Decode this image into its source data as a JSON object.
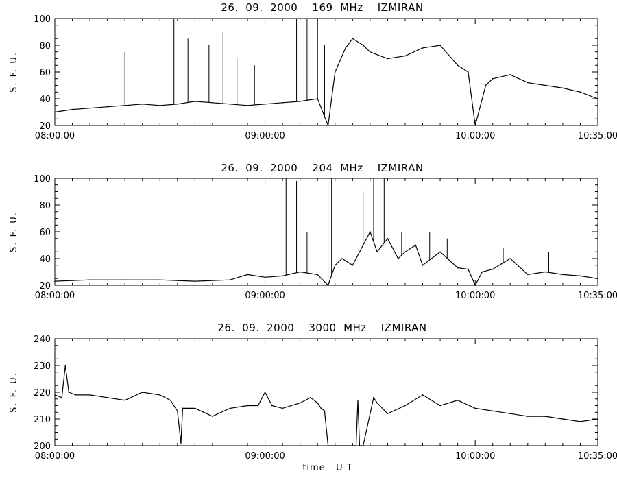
{
  "chart_data": [
    {
      "type": "line",
      "title": "26.  09.  2000    169  MHz    IZMIRAN",
      "ylabel": "S. F. U.",
      "xlabel": "",
      "x_range_minutes_from_0800": [
        0,
        155
      ],
      "x_ticks": [
        {
          "t": 0,
          "label": "08:00:00"
        },
        {
          "t": 60,
          "label": "09:00:00"
        },
        {
          "t": 120,
          "label": "10:00:00"
        },
        {
          "t": 155,
          "label": "10:35:00"
        }
      ],
      "ylim": [
        20,
        100
      ],
      "y_ticks": [
        20,
        40,
        60,
        80,
        100
      ],
      "series": [
        {
          "x": [
            0,
            5,
            10,
            15,
            20,
            25,
            30,
            35,
            40,
            45,
            50,
            55,
            60,
            65,
            70,
            75,
            78,
            80,
            83,
            85,
            88,
            90,
            95,
            100,
            105,
            110,
            115,
            118,
            120,
            123,
            125,
            130,
            135,
            140,
            145,
            150,
            155
          ],
          "values": [
            30,
            32,
            33,
            34,
            35,
            36,
            35,
            36,
            38,
            37,
            36,
            35,
            36,
            37,
            38,
            40,
            20,
            60,
            78,
            85,
            80,
            75,
            70,
            72,
            78,
            80,
            65,
            60,
            20,
            50,
            55,
            58,
            52,
            50,
            48,
            45,
            40
          ],
          "spikes": [
            {
              "x": 20,
              "y": 75
            },
            {
              "x": 34,
              "y": 100
            },
            {
              "x": 38,
              "y": 85
            },
            {
              "x": 44,
              "y": 80
            },
            {
              "x": 48,
              "y": 90
            },
            {
              "x": 52,
              "y": 70
            },
            {
              "x": 57,
              "y": 65
            },
            {
              "x": 69,
              "y": 100
            },
            {
              "x": 72,
              "y": 100
            },
            {
              "x": 75,
              "y": 100
            },
            {
              "x": 77,
              "y": 80
            }
          ]
        }
      ]
    },
    {
      "type": "line",
      "title": "26.  09.  2000    204  MHz    IZMIRAN",
      "ylabel": "S. F. U.",
      "xlabel": "",
      "x_range_minutes_from_0800": [
        0,
        155
      ],
      "x_ticks": [
        {
          "t": 0,
          "label": "08:00:00"
        },
        {
          "t": 60,
          "label": "09:00:00"
        },
        {
          "t": 120,
          "label": "10:00:00"
        },
        {
          "t": 155,
          "label": "10:35:00"
        }
      ],
      "ylim": [
        20,
        100
      ],
      "y_ticks": [
        20,
        40,
        60,
        80,
        100
      ],
      "series": [
        {
          "x": [
            0,
            10,
            20,
            30,
            40,
            50,
            55,
            60,
            65,
            70,
            75,
            78,
            80,
            82,
            85,
            88,
            90,
            92,
            95,
            98,
            100,
            103,
            105,
            110,
            115,
            118,
            120,
            122,
            125,
            130,
            135,
            140,
            145,
            150,
            155
          ],
          "values": [
            23,
            24,
            24,
            24,
            23,
            24,
            28,
            26,
            27,
            30,
            28,
            20,
            35,
            40,
            35,
            50,
            60,
            45,
            55,
            40,
            45,
            50,
            35,
            45,
            33,
            32,
            20,
            30,
            32,
            40,
            28,
            30,
            28,
            27,
            25
          ],
          "spikes": [
            {
              "x": 66,
              "y": 100
            },
            {
              "x": 69,
              "y": 98
            },
            {
              "x": 72,
              "y": 60
            },
            {
              "x": 78,
              "y": 100
            },
            {
              "x": 79,
              "y": 100
            },
            {
              "x": 88,
              "y": 90
            },
            {
              "x": 91,
              "y": 100
            },
            {
              "x": 94,
              "y": 100
            },
            {
              "x": 99,
              "y": 60
            },
            {
              "x": 107,
              "y": 60
            },
            {
              "x": 112,
              "y": 55
            },
            {
              "x": 128,
              "y": 48
            },
            {
              "x": 141,
              "y": 45
            }
          ]
        }
      ]
    },
    {
      "type": "line",
      "title": "26.  09.  2000    3000  MHz    IZMIRAN",
      "ylabel": "S. F. U.",
      "xlabel": "time   U T",
      "x_range_minutes_from_0800": [
        0,
        155
      ],
      "x_ticks": [
        {
          "t": 0,
          "label": "08:00:00"
        },
        {
          "t": 60,
          "label": "09:00:00"
        },
        {
          "t": 120,
          "label": "10:00:00"
        },
        {
          "t": 155,
          "label": "10:35:00"
        }
      ],
      "ylim": [
        200,
        240
      ],
      "y_ticks": [
        200,
        210,
        220,
        230,
        240
      ],
      "series": [
        {
          "x": [
            0,
            2,
            3,
            4,
            6,
            10,
            15,
            20,
            25,
            30,
            33,
            35,
            36,
            36.5,
            37,
            40,
            45,
            50,
            55,
            58,
            60,
            62,
            65,
            70,
            73,
            75,
            76,
            77,
            78,
            86,
            86.5,
            87,
            87.5,
            88,
            91,
            92,
            95,
            100,
            105,
            110,
            115,
            120,
            125,
            130,
            135,
            140,
            145,
            150,
            155
          ],
          "values": [
            219,
            218,
            230,
            220,
            219,
            219,
            218,
            217,
            220,
            219,
            217,
            213,
            201,
            214,
            214,
            214,
            211,
            214,
            215,
            215,
            220,
            215,
            214,
            216,
            218,
            216,
            214,
            213,
            200,
            200,
            217,
            200,
            200,
            200,
            218,
            216,
            212,
            215,
            219,
            215,
            217,
            214,
            213,
            212,
            211,
            211,
            210,
            209,
            210
          ]
        }
      ]
    }
  ]
}
